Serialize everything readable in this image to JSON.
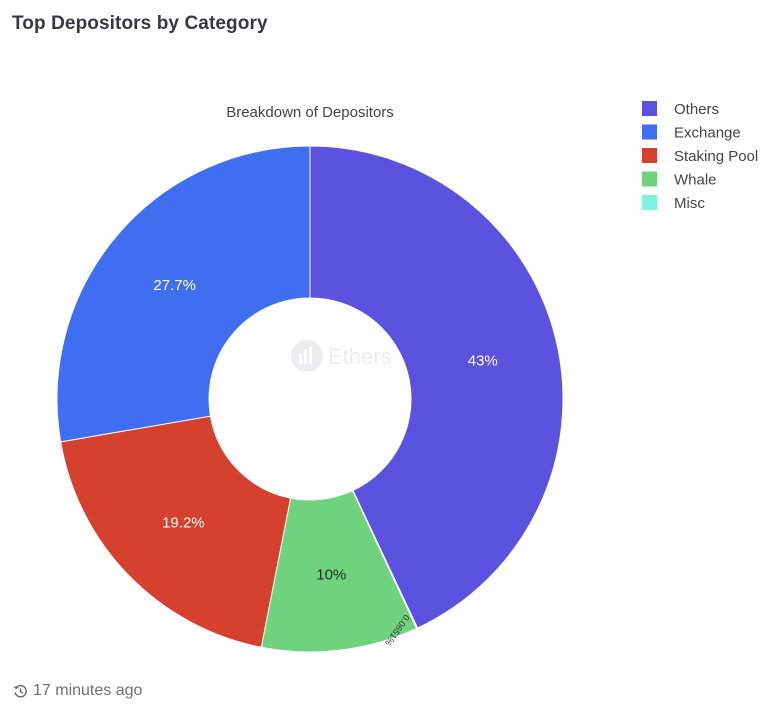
{
  "header": {
    "title": "Top Depositors by Category"
  },
  "footer": {
    "icon": "history-clock-icon",
    "updated_text": "17 minutes ago"
  },
  "watermark": {
    "text": "Ethers"
  },
  "chart_data": {
    "type": "pie",
    "subtype": "donut",
    "title": "Breakdown of Depositors",
    "legend_position": "top-right",
    "categories": [
      "Others",
      "Exchange",
      "Staking Pool",
      "Whale",
      "Misc"
    ],
    "values": [
      43.0,
      27.7,
      19.2,
      10.0,
      0.0651
    ],
    "labels": [
      "43%",
      "27.7%",
      "19.2%",
      "10%",
      "0.0651%"
    ],
    "colors": [
      "#5c52e0",
      "#3f6ef0",
      "#d6402f",
      "#6fd37d",
      "#7ff2e6"
    ],
    "slice_order": [
      "Others",
      "Misc",
      "Whale",
      "Staking Pool",
      "Exchange"
    ],
    "direction": "clockwise from top"
  }
}
